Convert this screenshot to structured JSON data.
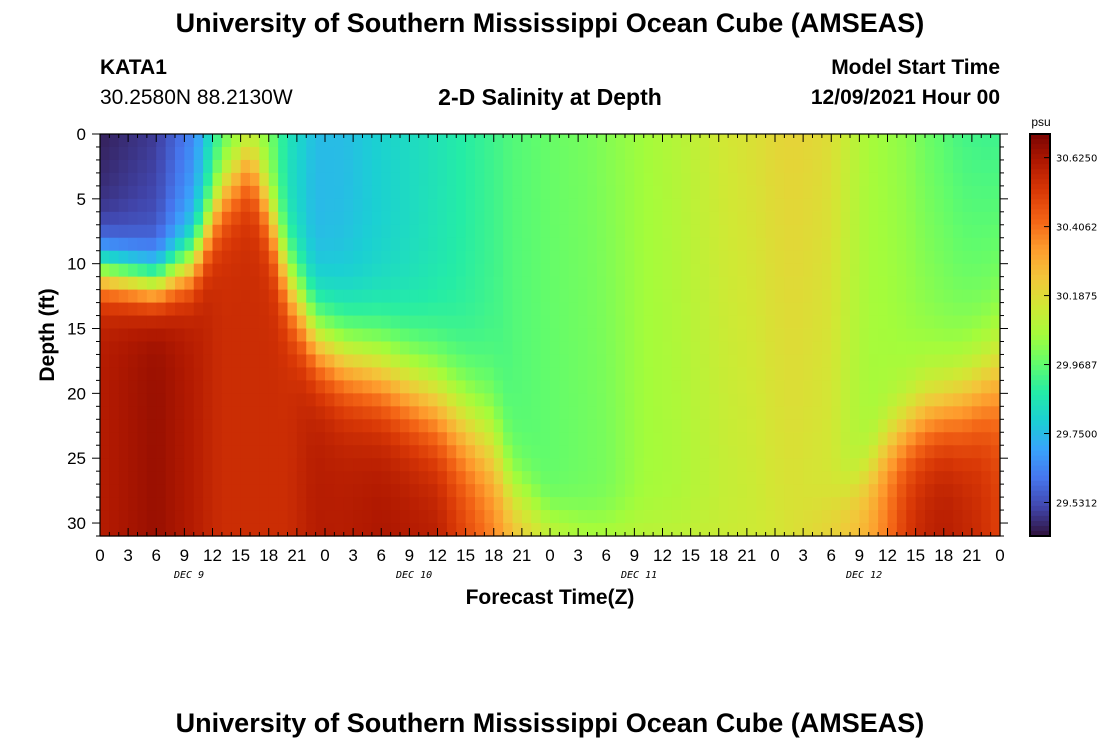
{
  "header": {
    "title": "University of Southern Mississippi Ocean Cube (AMSEAS)",
    "station_id": "KATA1",
    "coordinates": "30.2580N  88.2130W",
    "chart_title": "2-D Salinity at Depth",
    "model_start_label": "Model Start Time",
    "model_start_value": "12/09/2021 Hour 00"
  },
  "footer": {
    "title": "University of Southern Mississippi Ocean Cube (AMSEAS)"
  },
  "colors": {
    "scale": [
      "#30123b",
      "#4145ab",
      "#4675ed",
      "#39a2fc",
      "#1bcfd4",
      "#24eca6",
      "#61fc6c",
      "#a4fc3b",
      "#d1e834",
      "#f3c63a",
      "#fe9b2d",
      "#f36315",
      "#d93806",
      "#b11901",
      "#7a0402"
    ]
  },
  "chart_data": {
    "type": "heatmap",
    "title": "2-D Salinity at Depth",
    "xlabel": "Forecast Time(Z)",
    "ylabel": "Depth (ft)",
    "x_tick_labels": [
      "0",
      "3",
      "6",
      "9",
      "12",
      "15",
      "18",
      "21",
      "0",
      "3",
      "6",
      "9",
      "12",
      "15",
      "18",
      "21",
      "0",
      "3",
      "6",
      "9",
      "12",
      "15",
      "18",
      "21",
      "0",
      "3",
      "6",
      "9",
      "12",
      "15",
      "18",
      "21",
      "0"
    ],
    "day_labels": [
      "DEC 9",
      "DEC 10",
      "DEC 11",
      "DEC 12"
    ],
    "y_ticks": [
      0,
      5,
      10,
      15,
      20,
      25,
      30
    ],
    "ylim": [
      0,
      31
    ],
    "x_range_hours": [
      0,
      96
    ],
    "colorbar": {
      "unit": "psu",
      "min": 29.425,
      "max": 30.7,
      "tick_values": [
        29.53125,
        29.75,
        29.96875,
        30.1875,
        30.40625,
        30.625
      ],
      "tick_labels": [
        "29.5312",
        "29.7500",
        "29.9687",
        "30.1875",
        "30.4062",
        "30.6250"
      ]
    },
    "profile_note": "Salinity field: low (~29.45-29.9) near surface early Dec 9, high (~30.5-30.7) at depth Dec 9-10 and late Dec 12; mid values (~30.0-30.25) Dec 11-12",
    "profile_hours": [
      0,
      6,
      10,
      13,
      16,
      18,
      20,
      23,
      26,
      30,
      36,
      42,
      44,
      48,
      52,
      54,
      58,
      62,
      66,
      70,
      72,
      74,
      76,
      78,
      80,
      82,
      84,
      86,
      88,
      90,
      92,
      94,
      96
    ],
    "profile": [
      {
        "surface": 29.45,
        "mid": 29.5,
        "bottom": 30.6,
        "thermocline": 10.5,
        "width": 1.2
      },
      {
        "surface": 29.5,
        "mid": 29.55,
        "bottom": 30.65,
        "thermocline": 11.5,
        "width": 1.2
      },
      {
        "surface": 29.65,
        "mid": 29.75,
        "bottom": 30.6,
        "thermocline": 10.0,
        "width": 1.4
      },
      {
        "surface": 29.95,
        "mid": 30.0,
        "bottom": 30.55,
        "thermocline": 5.0,
        "width": 1.6
      },
      {
        "surface": 30.05,
        "mid": 30.1,
        "bottom": 30.55,
        "thermocline": 2.5,
        "width": 1.6
      },
      {
        "surface": 30.0,
        "mid": 30.0,
        "bottom": 30.55,
        "thermocline": 6.0,
        "width": 1.8
      },
      {
        "surface": 29.85,
        "mid": 29.8,
        "bottom": 30.55,
        "thermocline": 11.0,
        "width": 2.0
      },
      {
        "surface": 29.75,
        "mid": 29.72,
        "bottom": 30.6,
        "thermocline": 15.5,
        "width": 2.0
      },
      {
        "surface": 29.75,
        "mid": 29.75,
        "bottom": 30.6,
        "thermocline": 17.0,
        "width": 2.2
      },
      {
        "surface": 29.8,
        "mid": 29.78,
        "bottom": 30.62,
        "thermocline": 18.0,
        "width": 2.4
      },
      {
        "surface": 29.85,
        "mid": 29.85,
        "bottom": 30.6,
        "thermocline": 20.5,
        "width": 2.6
      },
      {
        "surface": 29.92,
        "mid": 29.92,
        "bottom": 30.4,
        "thermocline": 24.0,
        "width": 2.6
      },
      {
        "surface": 29.95,
        "mid": 29.95,
        "bottom": 30.3,
        "thermocline": 27.5,
        "width": 1.8
      },
      {
        "surface": 29.98,
        "mid": 29.97,
        "bottom": 30.15,
        "thermocline": 29.5,
        "width": 1.0
      },
      {
        "surface": 30.0,
        "mid": 29.99,
        "bottom": 30.1,
        "thermocline": 29.8,
        "width": 1.0
      },
      {
        "surface": 30.02,
        "mid": 30.0,
        "bottom": 30.1,
        "thermocline": 29.8,
        "width": 1.0
      },
      {
        "surface": 30.06,
        "mid": 30.06,
        "bottom": 30.12,
        "thermocline": 29.8,
        "width": 1.0
      },
      {
        "surface": 30.1,
        "mid": 30.08,
        "bottom": 30.12,
        "thermocline": 29.5,
        "width": 1.0
      },
      {
        "surface": 30.15,
        "mid": 30.12,
        "bottom": 30.14,
        "thermocline": 29.5,
        "width": 1.0
      },
      {
        "surface": 30.18,
        "mid": 30.14,
        "bottom": 30.15,
        "thermocline": 29.5,
        "width": 1.0
      },
      {
        "surface": 30.2,
        "mid": 30.16,
        "bottom": 30.16,
        "thermocline": 29.5,
        "width": 1.0
      },
      {
        "surface": 30.21,
        "mid": 30.17,
        "bottom": 30.18,
        "thermocline": 29.5,
        "width": 1.0
      },
      {
        "surface": 30.2,
        "mid": 30.16,
        "bottom": 30.2,
        "thermocline": 29.0,
        "width": 1.0
      },
      {
        "surface": 30.18,
        "mid": 30.15,
        "bottom": 30.22,
        "thermocline": 28.5,
        "width": 1.2
      },
      {
        "surface": 30.12,
        "mid": 30.1,
        "bottom": 30.25,
        "thermocline": 27.5,
        "width": 1.2
      },
      {
        "surface": 30.07,
        "mid": 30.07,
        "bottom": 30.3,
        "thermocline": 26.0,
        "width": 1.4
      },
      {
        "surface": 30.05,
        "mid": 30.07,
        "bottom": 30.4,
        "thermocline": 24.0,
        "width": 1.6
      },
      {
        "surface": 30.03,
        "mid": 30.06,
        "bottom": 30.52,
        "thermocline": 23.0,
        "width": 1.8
      },
      {
        "surface": 29.99,
        "mid": 30.05,
        "bottom": 30.58,
        "thermocline": 22.0,
        "width": 2.0
      },
      {
        "surface": 29.96,
        "mid": 30.04,
        "bottom": 30.6,
        "thermocline": 21.5,
        "width": 2.0
      },
      {
        "surface": 29.93,
        "mid": 30.03,
        "bottom": 30.58,
        "thermocline": 21.0,
        "width": 2.2
      },
      {
        "surface": 29.92,
        "mid": 30.03,
        "bottom": 30.55,
        "thermocline": 20.0,
        "width": 2.2
      },
      {
        "surface": 29.92,
        "mid": 30.04,
        "bottom": 30.5,
        "thermocline": 19.0,
        "width": 2.4
      }
    ]
  }
}
